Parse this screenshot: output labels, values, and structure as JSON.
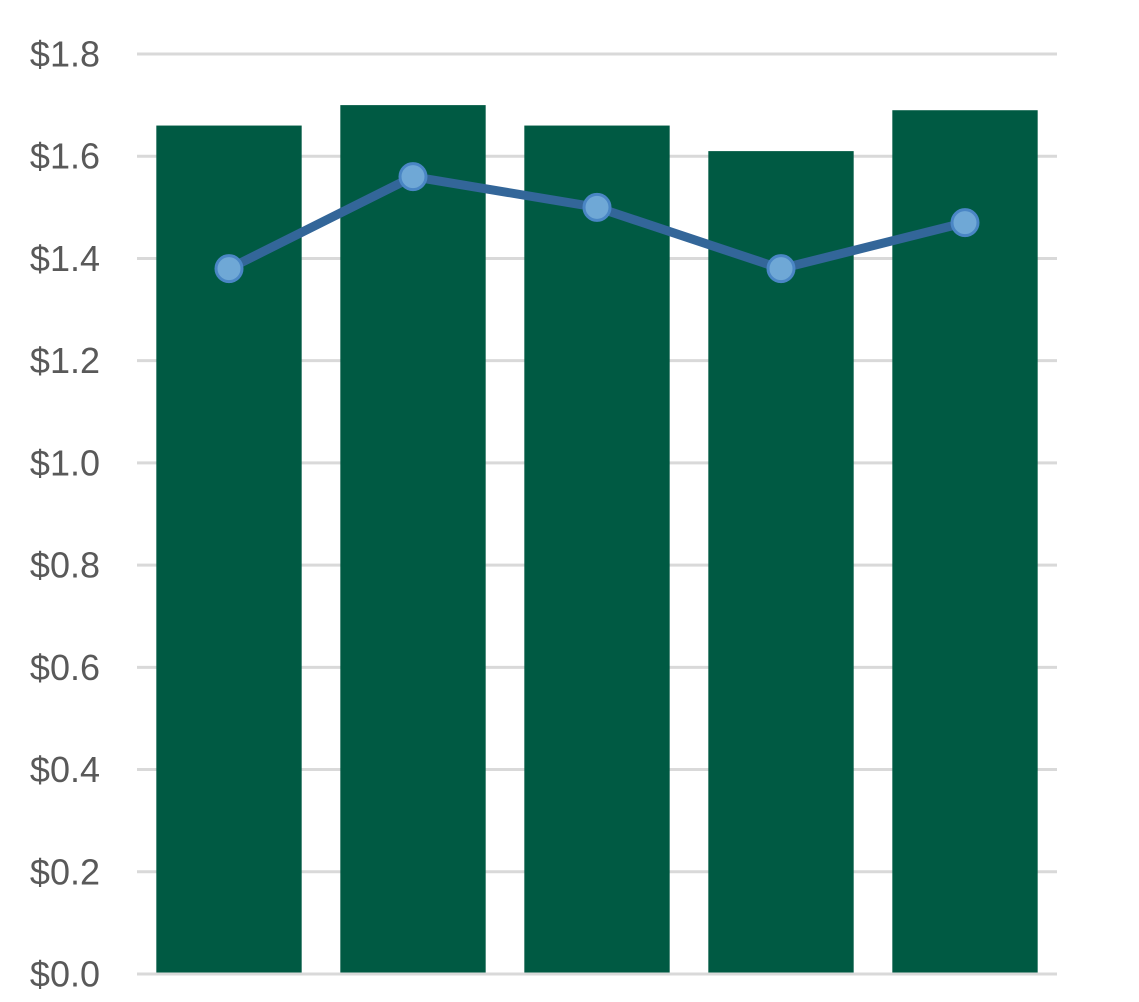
{
  "chart_data": {
    "type": "bar",
    "title": "",
    "xlabel": "",
    "ylabel": "",
    "ylim": [
      0,
      1.8
    ],
    "y_ticks": [
      0.0,
      0.2,
      0.4,
      0.6,
      0.8,
      1.0,
      1.2,
      1.4,
      1.6,
      1.8
    ],
    "y_tick_labels": [
      "$0.0",
      "$0.2",
      "$0.4",
      "$0.6",
      "$0.8",
      "$1.0",
      "$1.2",
      "$1.4",
      "$1.6",
      "$1.8"
    ],
    "categories": [
      "",
      "",
      "",
      "",
      ""
    ],
    "series": [
      {
        "type": "bar",
        "values": [
          1.66,
          1.7,
          1.66,
          1.61,
          1.69
        ],
        "color": "#005a43"
      },
      {
        "type": "line",
        "values": [
          1.38,
          1.56,
          1.5,
          1.38,
          1.47
        ],
        "color": "#336699",
        "marker_color": "#6fa8d6"
      }
    ],
    "grid": true,
    "legend": "none"
  }
}
